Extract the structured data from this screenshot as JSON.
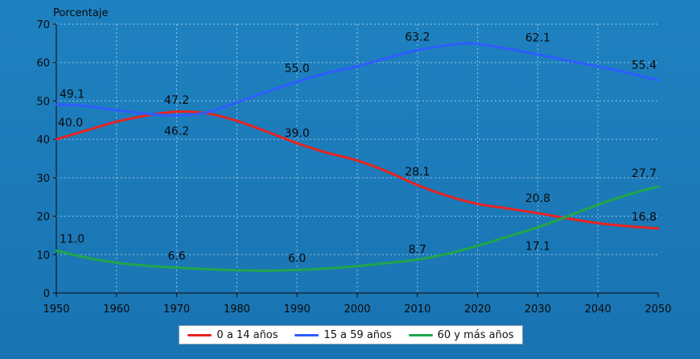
{
  "chart_data": {
    "type": "line",
    "ylabel": "Porcentaje",
    "xlim": [
      1950,
      2050
    ],
    "ylim": [
      0,
      70
    ],
    "xticks": [
      1950,
      1960,
      1970,
      1980,
      1990,
      2000,
      2010,
      2020,
      2030,
      2040,
      2050
    ],
    "yticks": [
      0,
      10,
      20,
      30,
      40,
      50,
      60,
      70
    ],
    "grid": true,
    "legend_position": "bottom",
    "series": [
      {
        "name": "0 a 14 años",
        "color": "#e8231f",
        "x": [
          1950,
          1955,
          1960,
          1965,
          1970,
          1975,
          1980,
          1985,
          1990,
          1995,
          2000,
          2005,
          2010,
          2015,
          2020,
          2025,
          2030,
          2035,
          2040,
          2045,
          2050
        ],
        "values": [
          40.0,
          42.3,
          44.6,
          46.2,
          47.2,
          46.8,
          44.8,
          42.0,
          39.0,
          36.5,
          34.5,
          31.6,
          28.1,
          25.3,
          23.2,
          22.0,
          20.8,
          19.4,
          18.2,
          17.4,
          16.8
        ]
      },
      {
        "name": "15 a 59 años",
        "color": "#2f5cff",
        "x": [
          1950,
          1955,
          1960,
          1965,
          1970,
          1975,
          1980,
          1985,
          1990,
          1995,
          2000,
          2005,
          2010,
          2015,
          2018,
          2020,
          2025,
          2030,
          2035,
          2040,
          2045,
          2050
        ],
        "values": [
          49.1,
          48.7,
          47.6,
          46.7,
          46.2,
          47.0,
          49.6,
          52.4,
          55.0,
          57.3,
          59.0,
          61.2,
          63.2,
          64.5,
          65.0,
          64.8,
          63.6,
          62.1,
          60.5,
          59.0,
          57.3,
          55.4
        ]
      },
      {
        "name": "60 y más años",
        "color": "#1fa64a",
        "x": [
          1950,
          1955,
          1960,
          1965,
          1970,
          1975,
          1980,
          1985,
          1990,
          1995,
          2000,
          2005,
          2010,
          2015,
          2020,
          2025,
          2030,
          2035,
          2040,
          2045,
          2050
        ],
        "values": [
          11.0,
          9.2,
          7.9,
          7.1,
          6.6,
          6.2,
          5.9,
          5.8,
          6.0,
          6.4,
          7.0,
          7.8,
          8.7,
          10.2,
          12.3,
          14.7,
          17.1,
          20.0,
          23.0,
          25.6,
          27.7
        ]
      }
    ],
    "annotations": [
      {
        "x": 1950,
        "y": 49.1,
        "text": "49.1"
      },
      {
        "x": 1950,
        "y": 40.0,
        "text": "40.0"
      },
      {
        "x": 1950,
        "y": 11.0,
        "text": "11.0"
      },
      {
        "x": 1970,
        "y": 47.2,
        "text": "47.2"
      },
      {
        "x": 1970,
        "y": 46.2,
        "text": "46.2"
      },
      {
        "x": 1970,
        "y": 6.6,
        "text": "6.6"
      },
      {
        "x": 1990,
        "y": 55.0,
        "text": "55.0"
      },
      {
        "x": 1990,
        "y": 39.0,
        "text": "39.0"
      },
      {
        "x": 1990,
        "y": 6.0,
        "text": "6.0"
      },
      {
        "x": 2010,
        "y": 63.2,
        "text": "63.2"
      },
      {
        "x": 2010,
        "y": 28.1,
        "text": "28.1"
      },
      {
        "x": 2010,
        "y": 8.7,
        "text": "8.7"
      },
      {
        "x": 2030,
        "y": 62.1,
        "text": "62.1"
      },
      {
        "x": 2030,
        "y": 20.8,
        "text": "20.8"
      },
      {
        "x": 2030,
        "y": 17.1,
        "text": "17.1"
      },
      {
        "x": 2050,
        "y": 55.4,
        "text": "55.4"
      },
      {
        "x": 2050,
        "y": 27.7,
        "text": "27.7"
      },
      {
        "x": 2050,
        "y": 16.8,
        "text": "16.8"
      }
    ]
  }
}
